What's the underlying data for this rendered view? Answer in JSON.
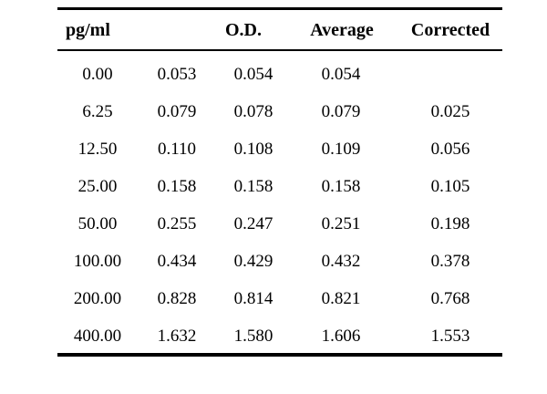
{
  "table": {
    "headers": {
      "concentration": "pg/ml",
      "od": "O.D.",
      "average": "Average",
      "corrected": "Corrected"
    },
    "rows": [
      {
        "concentration": "0.00",
        "od1": "0.053",
        "od2": "0.054",
        "average": "0.054",
        "corrected": ""
      },
      {
        "concentration": "6.25",
        "od1": "0.079",
        "od2": "0.078",
        "average": "0.079",
        "corrected": "0.025"
      },
      {
        "concentration": "12.50",
        "od1": "0.110",
        "od2": "0.108",
        "average": "0.109",
        "corrected": "0.056"
      },
      {
        "concentration": "25.00",
        "od1": "0.158",
        "od2": "0.158",
        "average": "0.158",
        "corrected": "0.105"
      },
      {
        "concentration": "50.00",
        "od1": "0.255",
        "od2": "0.247",
        "average": "0.251",
        "corrected": "0.198"
      },
      {
        "concentration": "100.00",
        "od1": "0.434",
        "od2": "0.429",
        "average": "0.432",
        "corrected": "0.378"
      },
      {
        "concentration": "200.00",
        "od1": "0.828",
        "od2": "0.814",
        "average": "0.821",
        "corrected": "0.768"
      },
      {
        "concentration": "400.00",
        "od1": "1.632",
        "od2": "1.580",
        "average": "1.606",
        "corrected": "1.553"
      }
    ]
  }
}
